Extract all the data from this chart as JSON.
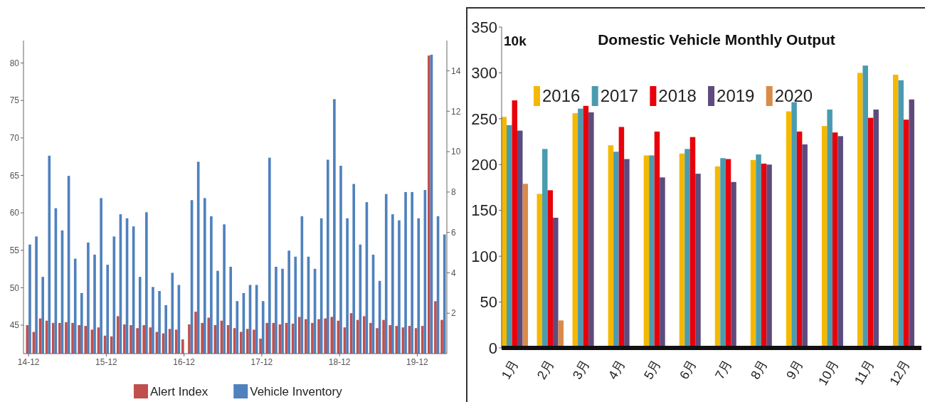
{
  "chart_data": [
    {
      "type": "bar",
      "categories": [
        "14-12",
        null,
        null,
        null,
        null,
        null,
        null,
        null,
        null,
        null,
        null,
        null,
        "15-12",
        null,
        null,
        null,
        null,
        null,
        null,
        null,
        null,
        null,
        null,
        null,
        "16-12",
        null,
        null,
        null,
        null,
        null,
        null,
        null,
        null,
        null,
        null,
        null,
        "17-12",
        null,
        null,
        null,
        null,
        null,
        null,
        null,
        null,
        null,
        null,
        null,
        "18-12",
        null,
        null,
        null,
        null,
        null,
        null,
        null,
        null,
        null,
        null,
        null,
        "19-12",
        null,
        null,
        null,
        null
      ],
      "series": [
        {
          "name": "Alert Index",
          "color": "#c0504d",
          "values": [
            45.0,
            44.1,
            45.9,
            45.6,
            45.3,
            45.3,
            45.4,
            45.3,
            45.0,
            44.9,
            44.4,
            44.7,
            43.6,
            43.5,
            46.2,
            45.1,
            45.0,
            44.6,
            45.0,
            44.7,
            44.1,
            43.9,
            44.5,
            44.4,
            43.1,
            45.1,
            46.8,
            45.3,
            46.0,
            45.0,
            45.6,
            45.0,
            44.6,
            44.1,
            44.5,
            44.4,
            43.2,
            45.3,
            45.3,
            45.1,
            45.3,
            45.2,
            46.1,
            45.8,
            45.3,
            45.8,
            45.9,
            46.1,
            45.6,
            44.7,
            46.6,
            45.7,
            46.2,
            45.3,
            44.6,
            45.7,
            45.0,
            44.9,
            44.7,
            44.9,
            44.6,
            44.9,
            81.0,
            48.2,
            45.7
          ]
        },
        {
          "name": "Vehicle Inventory",
          "color": "#4f81bd",
          "axis": "y2",
          "values": [
            5.4,
            5.8,
            3.8,
            9.8,
            7.2,
            6.1,
            8.8,
            4.7,
            3.0,
            5.5,
            4.9,
            7.7,
            4.4,
            5.8,
            6.9,
            6.7,
            6.3,
            3.8,
            7.0,
            3.3,
            3.1,
            2.4,
            4.0,
            3.4,
            null,
            7.6,
            9.5,
            7.7,
            6.8,
            4.1,
            6.4,
            4.3,
            2.6,
            3.0,
            3.4,
            3.4,
            2.6,
            9.7,
            4.3,
            4.2,
            5.1,
            4.8,
            6.8,
            4.8,
            4.2,
            6.7,
            9.6,
            12.6,
            9.3,
            6.7,
            8.4,
            5.4,
            7.5,
            4.9,
            3.6,
            7.9,
            6.9,
            6.6,
            8.0,
            8.0,
            6.7,
            8.1,
            14.8,
            6.8,
            5.9
          ]
        }
      ],
      "ylim": [
        41.2,
        83
      ],
      "yticks": [
        45,
        50,
        55,
        60,
        65,
        70,
        75,
        80
      ],
      "y2lim": [
        0,
        15.5
      ],
      "y2ticks": [
        2,
        4,
        6,
        8,
        10,
        12,
        14
      ],
      "legend": "bottom"
    },
    {
      "type": "bar",
      "title": "Domestic Vehicle Monthly Output",
      "ylabel": "10k",
      "categories": [
        "1月",
        "2月",
        "3月",
        "4月",
        "5月",
        "6月",
        "7月",
        "8月",
        "9月",
        "10月",
        "11月",
        "12月"
      ],
      "series": [
        {
          "name": "2016",
          "color": "#f5b800",
          "values": [
            252,
            168,
            256,
            221,
            210,
            212,
            198,
            205,
            258,
            242,
            300,
            298
          ]
        },
        {
          "name": "2017",
          "color": "#4a9bb0",
          "values": [
            243,
            217,
            261,
            214,
            210,
            217,
            207,
            211,
            268,
            260,
            308,
            292
          ]
        },
        {
          "name": "2018",
          "color": "#e8000b",
          "values": [
            270,
            172,
            264,
            241,
            236,
            230,
            206,
            201,
            236,
            235,
            251,
            249
          ]
        },
        {
          "name": "2019",
          "color": "#5e4b7e",
          "values": [
            237,
            142,
            257,
            206,
            186,
            190,
            181,
            200,
            222,
            231,
            260,
            271
          ]
        },
        {
          "name": "2020",
          "color": "#d98b4a",
          "values": [
            179,
            30,
            null,
            null,
            null,
            null,
            null,
            null,
            null,
            null,
            null,
            null
          ]
        }
      ],
      "ylim": [
        0,
        350
      ],
      "yticks": [
        0,
        50,
        100,
        150,
        200,
        250,
        300,
        350
      ],
      "legend": "top left"
    }
  ]
}
